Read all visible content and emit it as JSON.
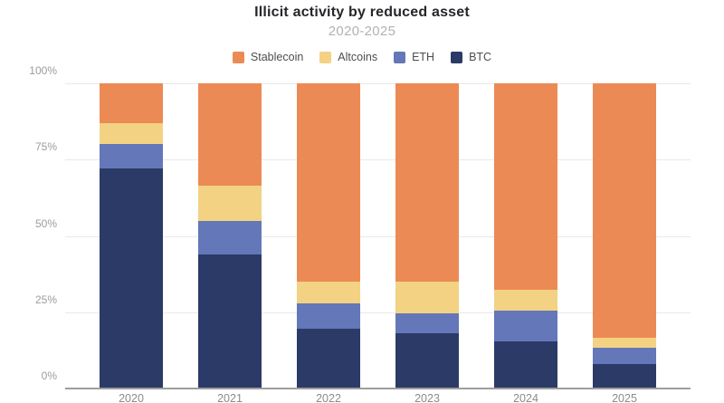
{
  "chart": {
    "title": "Illicit activity by reduced asset",
    "subtitle": "2020-2025"
  },
  "chart_data": {
    "type": "bar",
    "stacked": true,
    "unit": "percent",
    "title": "Illicit activity by reduced asset",
    "subtitle": "2020-2025",
    "categories": [
      "2020",
      "2021",
      "2022",
      "2023",
      "2024",
      "2025"
    ],
    "series": [
      {
        "name": "Stablecoin",
        "color": "#EC8A55",
        "values": [
          13,
          33.5,
          65,
          65,
          67.5,
          83.5
        ]
      },
      {
        "name": "Altcoins",
        "color": "#F3D284",
        "values": [
          7,
          11.5,
          7,
          10.5,
          7,
          3
        ]
      },
      {
        "name": "ETH",
        "color": "#6377B9",
        "values": [
          8,
          11,
          8.5,
          6.5,
          10,
          5.5
        ]
      },
      {
        "name": "BTC",
        "color": "#2B3A67",
        "values": [
          72,
          44,
          19.5,
          18,
          15.5,
          8
        ]
      }
    ],
    "y_ticks": [
      {
        "value": 0,
        "label": "0%"
      },
      {
        "value": 25,
        "label": "25%"
      },
      {
        "value": 50,
        "label": "50%"
      },
      {
        "value": 75,
        "label": "75%"
      },
      {
        "value": 100,
        "label": "100%"
      }
    ],
    "ylim": [
      0,
      100
    ],
    "grid": true,
    "legend_position": "top",
    "colors": {
      "grid": "#e9e9e9",
      "axis_line": "#9e9e9e",
      "tick_text": "#9c9c9c",
      "x_tick_text": "#8b8b8b",
      "title_text": "#26262b",
      "subtitle_text": "#b2b2b2",
      "legend_text": "#4d4d4d"
    }
  }
}
